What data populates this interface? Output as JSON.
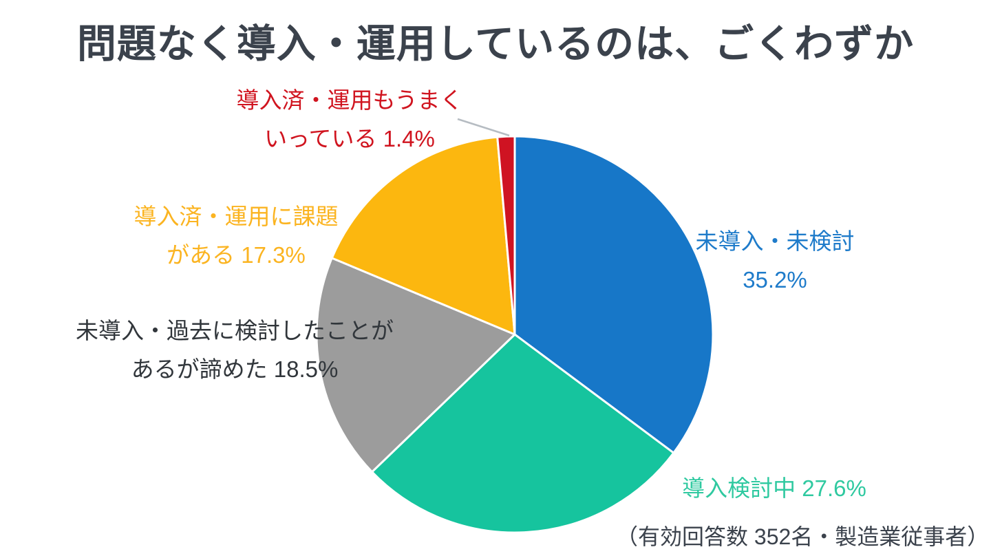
{
  "chart_data": {
    "type": "pie",
    "title": "問題なく導入・運用しているのは、ごくわずか",
    "caption": "（有効回答数 352名・製造業従事者）",
    "start_angle_deg": 0,
    "direction": "clockwise",
    "unit": "%",
    "total": 100,
    "slices": [
      {
        "name": "未導入・未検討",
        "value": 35.2,
        "color": "#1777c8"
      },
      {
        "name": "導入検討中",
        "value": 27.6,
        "color": "#16c49e"
      },
      {
        "name": "未導入・過去に検討したことがあるが諦めた",
        "value": 18.5,
        "color": "#9c9c9c"
      },
      {
        "name": "導入済・運用に課題がある",
        "value": 17.3,
        "color": "#fcb70f"
      },
      {
        "name": "導入済・運用もうまくいっている",
        "value": 1.4,
        "color": "#cf1322"
      }
    ],
    "legend_position": "labels-around-pie",
    "grid": false
  },
  "callouts": {
    "not_deployed": {
      "line1": "未導入・未検討",
      "line2": "35.2%",
      "color": "#1e7bca"
    },
    "considering": {
      "line1": "導入検討中 27.6%",
      "line2": "",
      "color": "#2fc9a0"
    },
    "gave_up": {
      "line1": "未導入・過去に検討したことが",
      "line2": "あるが諦めた 18.5%",
      "color": "#31363b"
    },
    "has_issues": {
      "line1": "導入済・運用に課題",
      "line2": "がある 17.3%",
      "color": "#fbb421"
    },
    "running_well": {
      "line1": "導入済・運用もうまく",
      "line2": "いっている 1.4%",
      "color": "#d0141f"
    }
  },
  "style": {
    "leader_line_color": "#b6bcc2",
    "slice_gap_color": "#ffffff",
    "title_color": "#3b424c"
  }
}
